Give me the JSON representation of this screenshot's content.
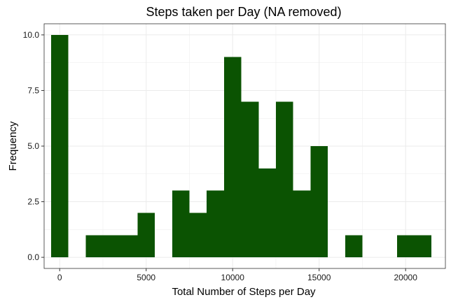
{
  "chart_data": {
    "type": "bar",
    "title": "Steps taken per Day (NA removed)",
    "xlabel": "Total Number of Steps per Day",
    "ylabel": "Frequency",
    "bin_width": 1000,
    "bins": [
      {
        "x0": -500,
        "x1": 500,
        "count": 10
      },
      {
        "x0": 500,
        "x1": 1500,
        "count": 0
      },
      {
        "x0": 1500,
        "x1": 2500,
        "count": 1
      },
      {
        "x0": 2500,
        "x1": 3500,
        "count": 1
      },
      {
        "x0": 3500,
        "x1": 4500,
        "count": 1
      },
      {
        "x0": 4500,
        "x1": 5500,
        "count": 2
      },
      {
        "x0": 5500,
        "x1": 6500,
        "count": 0
      },
      {
        "x0": 6500,
        "x1": 7500,
        "count": 3
      },
      {
        "x0": 7500,
        "x1": 8500,
        "count": 2
      },
      {
        "x0": 8500,
        "x1": 9500,
        "count": 3
      },
      {
        "x0": 9500,
        "x1": 10500,
        "count": 9
      },
      {
        "x0": 10500,
        "x1": 11500,
        "count": 7
      },
      {
        "x0": 11500,
        "x1": 12500,
        "count": 4
      },
      {
        "x0": 12500,
        "x1": 13500,
        "count": 7
      },
      {
        "x0": 13500,
        "x1": 14500,
        "count": 3
      },
      {
        "x0": 14500,
        "x1": 15500,
        "count": 5
      },
      {
        "x0": 15500,
        "x1": 16500,
        "count": 0
      },
      {
        "x0": 16500,
        "x1": 17500,
        "count": 1
      },
      {
        "x0": 17500,
        "x1": 18500,
        "count": 0
      },
      {
        "x0": 18500,
        "x1": 19500,
        "count": 0
      },
      {
        "x0": 19500,
        "x1": 20500,
        "count": 1
      },
      {
        "x0": 20500,
        "x1": 21500,
        "count": 1
      }
    ],
    "xlim": [
      -900,
      22300
    ],
    "ylim": [
      -0.5,
      10.5
    ],
    "x_ticks": [
      0,
      5000,
      10000,
      15000,
      20000
    ],
    "x_tick_labels": [
      "0",
      "5000",
      "10000",
      "15000",
      "20000"
    ],
    "y_ticks": [
      0,
      2.5,
      5,
      7.5,
      10
    ],
    "y_tick_labels": [
      "0.0",
      "2.5",
      "5.0",
      "7.5",
      "10.0"
    ],
    "grid": true,
    "bar_color": "#0b5302",
    "grid_color": "#ebebeb",
    "panel_border_color": "#333333"
  }
}
